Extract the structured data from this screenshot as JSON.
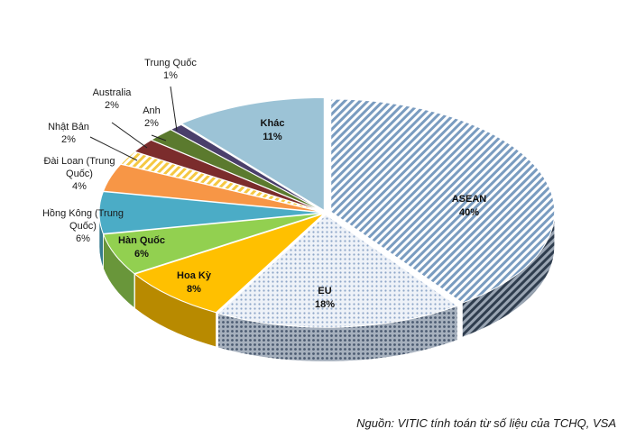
{
  "chart_data": {
    "type": "pie",
    "style": "3d-exploded",
    "legend": "none",
    "slices": [
      {
        "label": "ASEAN",
        "value": 40,
        "value_label": "40%",
        "color": "#8fb4d3",
        "pattern": "diagonal-hatch"
      },
      {
        "label": "EU",
        "value": 18,
        "value_label": "18%",
        "color": "#c8d3e6",
        "pattern": "dots"
      },
      {
        "label": "Hoa Kỳ",
        "value": 8,
        "value_label": "8%",
        "color": "#ffc000"
      },
      {
        "label": "Hàn Quốc",
        "value": 6,
        "value_label": "6%",
        "color": "#92d050"
      },
      {
        "label": "Hồng Kông (Trung Quốc)",
        "value": 6,
        "value_label": "6%",
        "color": "#4bacc6"
      },
      {
        "label": "Đài Loan (Trung Quốc)",
        "value": 4,
        "value_label": "4%",
        "color": "#f79646"
      },
      {
        "label": "Nhật Bản",
        "value": 2,
        "value_label": "2%",
        "color": "#ffe699",
        "pattern": "stripes"
      },
      {
        "label": "Australia",
        "value": 2,
        "value_label": "2%",
        "color": "#7b2c2c"
      },
      {
        "label": "Anh",
        "value": 2,
        "value_label": "2%",
        "color": "#5b7a2e"
      },
      {
        "label": "Trung Quốc",
        "value": 1,
        "value_label": "1%",
        "color": "#4a3f6b"
      },
      {
        "label": "Khác",
        "value": 11,
        "value_label": "11%",
        "color": "#9cc3d6"
      }
    ]
  },
  "source": "Nguồn: VITIC tính toán từ số liệu của TCHQ, VSA"
}
